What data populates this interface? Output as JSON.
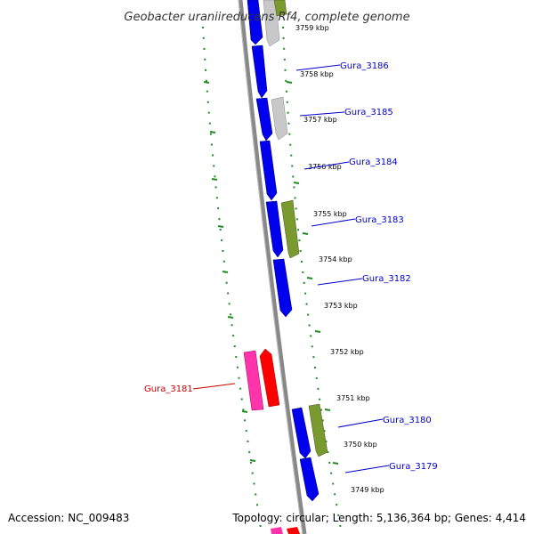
{
  "title": "Geobacter uraniireducens Rf4, complete genome",
  "footer": {
    "accession": "Accession: NC_009483",
    "topology": "Topology: circular; Length: 5,136,364 bp; Genes: 4,414"
  },
  "colors": {
    "forward_cds": "#0000ee",
    "other_gene": "#c8c8c8",
    "olive_gene": "#7a9a30",
    "highlight_red": "#ff0000",
    "highlight_pink": "#ff33aa",
    "label_blue": "#0000cc",
    "label_red": "#cc0000",
    "gc_dots": "#228b22",
    "backbone": "#888888"
  },
  "scale_labels": [
    "3759 kbp",
    "3758 kbp",
    "3757 kbp",
    "3756 kbp",
    "3755 kbp",
    "3754 kbp",
    "3753 kbp",
    "3752 kbp",
    "3751 kbp",
    "3750 kbp",
    "3749 kbp"
  ],
  "gene_labels": [
    {
      "text": "Gura_3186",
      "strand": "+"
    },
    {
      "text": "Gura_3185",
      "strand": "+"
    },
    {
      "text": "Gura_3184",
      "strand": "+"
    },
    {
      "text": "Gura_3183",
      "strand": "+"
    },
    {
      "text": "Gura_3182",
      "strand": "+"
    },
    {
      "text": "Gura_3181",
      "strand": "-"
    },
    {
      "text": "Gura_3180",
      "strand": "+"
    },
    {
      "text": "Gura_3179",
      "strand": "+"
    }
  ]
}
